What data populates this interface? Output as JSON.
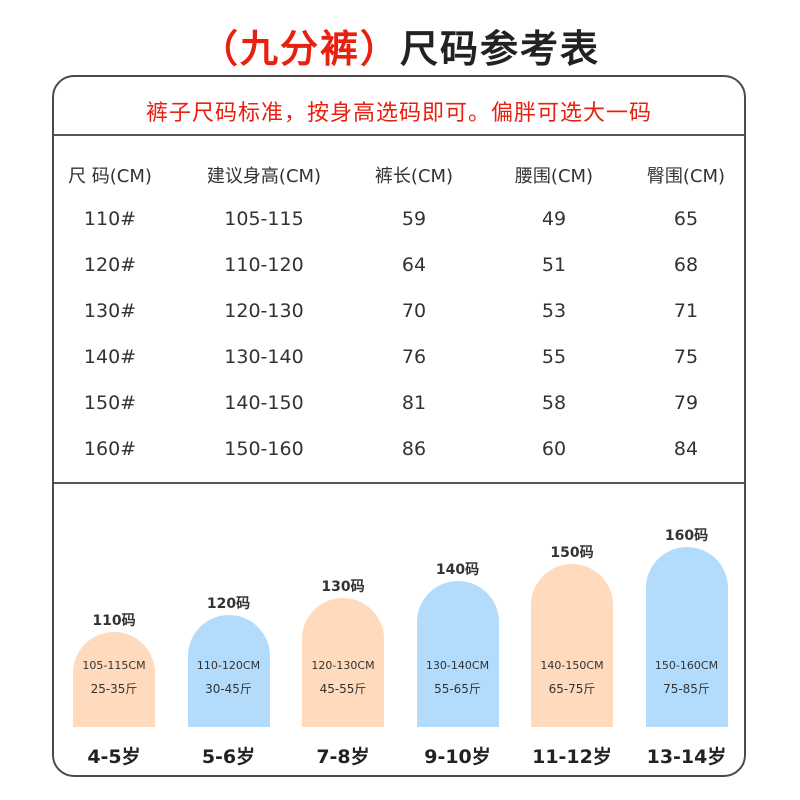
{
  "title": {
    "highlight": "（九分裤）",
    "main": "尺码参考表"
  },
  "notice": "裤子尺码标准，按身高选码即可。偏胖可选大一码",
  "table": {
    "headers": [
      "尺 码(CM)",
      "建议身高(CM)",
      "裤长(CM)",
      "腰围(CM)",
      "臀围(CM)"
    ],
    "rows": [
      [
        "110#",
        "105-115",
        "59",
        "49",
        "65"
      ],
      [
        "120#",
        "110-120",
        "64",
        "51",
        "68"
      ],
      [
        "130#",
        "120-130",
        "70",
        "53",
        "71"
      ],
      [
        "140#",
        "130-140",
        "76",
        "55",
        "75"
      ],
      [
        "150#",
        "140-150",
        "81",
        "58",
        "79"
      ],
      [
        "160#",
        "150-160",
        "86",
        "60",
        "84"
      ]
    ]
  },
  "size_bars": [
    {
      "label": "110码",
      "height_range": "105-115CM",
      "weight_range": "25-35斤",
      "age": "4-5岁",
      "color": "#ffdabc",
      "level": 1
    },
    {
      "label": "120码",
      "height_range": "110-120CM",
      "weight_range": "30-45斤",
      "age": "5-6岁",
      "color": "#b3dcfc",
      "level": 2
    },
    {
      "label": "130码",
      "height_range": "120-130CM",
      "weight_range": "45-55斤",
      "age": "7-8岁",
      "color": "#ffdabc",
      "level": 3
    },
    {
      "label": "140码",
      "height_range": "130-140CM",
      "weight_range": "55-65斤",
      "age": "9-10岁",
      "color": "#b3dcfc",
      "level": 4
    },
    {
      "label": "150码",
      "height_range": "140-150CM",
      "weight_range": "65-75斤",
      "age": "11-12岁",
      "color": "#ffdabc",
      "level": 5
    },
    {
      "label": "160码",
      "height_range": "150-160CM",
      "weight_range": "75-85斤",
      "age": "13-14岁",
      "color": "#b3dcfc",
      "level": 6
    }
  ],
  "colors": {
    "accent_red": "#e8200f",
    "peach": "#ffdabc",
    "light_blue": "#b3dcfc",
    "border": "#4a4a4a"
  }
}
